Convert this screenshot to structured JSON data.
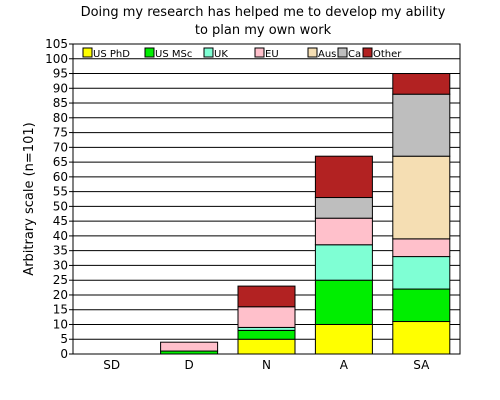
{
  "chart_data": {
    "type": "bar",
    "stacked": true,
    "title_line1": "Doing my research has helped me to develop my ability",
    "title_line2": "to plan my own work",
    "xlabel": "",
    "ylabel": "Arbitrary scale (n=101)",
    "ylim": [
      0,
      105
    ],
    "ytick_step": 5,
    "grid": "horizontal",
    "legend_position": "top",
    "categories": [
      "SD",
      "D",
      "N",
      "A",
      "SA"
    ],
    "series": [
      {
        "name": "US PhD",
        "color": "#ffff00",
        "values": [
          0,
          0,
          5,
          10,
          11
        ]
      },
      {
        "name": "US MSc",
        "color": "#00ee00",
        "values": [
          0,
          1,
          3,
          15,
          11
        ]
      },
      {
        "name": "UK",
        "color": "#7fffd4",
        "values": [
          0,
          0,
          1,
          12,
          11
        ]
      },
      {
        "name": "EU",
        "color": "#ffc0cb",
        "values": [
          0,
          3,
          7,
          9,
          6
        ]
      },
      {
        "name": "Aus",
        "color": "#f5deb3",
        "values": [
          0,
          0,
          0,
          0,
          28
        ]
      },
      {
        "name": "Ca",
        "color": "#bebebe",
        "values": [
          0,
          0,
          0,
          7,
          21
        ]
      },
      {
        "name": "Other",
        "color": "#b22222",
        "values": [
          0,
          0,
          7,
          14,
          7
        ]
      }
    ]
  }
}
